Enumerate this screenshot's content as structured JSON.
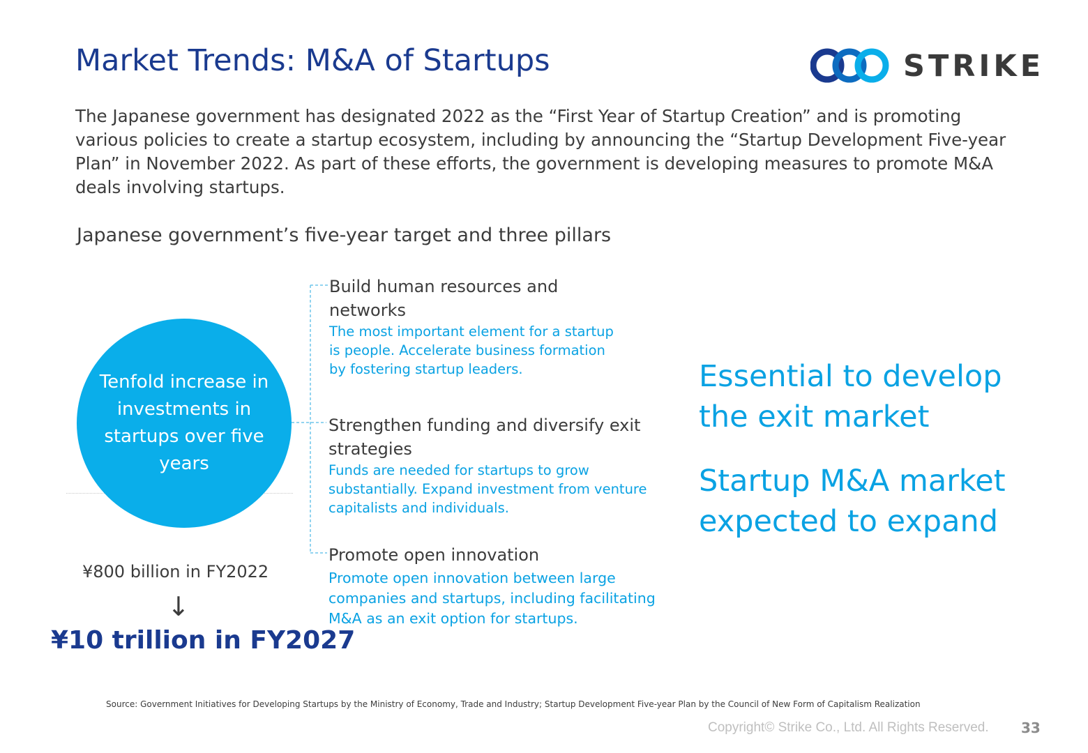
{
  "header": {
    "title": "Market Trends: M&A of Startups",
    "logo_text": "STRIKE"
  },
  "intro_text": "The Japanese government has designated 2022 as the “First Year of Startup Creation” and is promoting various policies to create a startup ecosystem, including by announcing the “Startup Development Five-year Plan” in November 2022. As part of these efforts, the government is developing measures to promote M&A deals involving startups.",
  "section_title": "Japanese government’s five-year target and three pillars",
  "target": {
    "circle_text": "Tenfold increase in\ninvestments in\nstartups over five\nyears",
    "from_value": "¥800 billion in FY2022",
    "arrow": "↓",
    "to_value": "¥10 trillion in FY2027"
  },
  "pillars": [
    {
      "title": "Build human resources and networks",
      "description": "The most important element for a startup is people. Accelerate business formation by fostering startup leaders."
    },
    {
      "title": "Strengthen funding and diversify exit strategies",
      "description": "Funds are needed for startups to grow substantially. Expand investment from venture capitalists and individuals."
    },
    {
      "title": "Promote open innovation",
      "description": "Promote open innovation between large companies and startups, including facilitating M&A as an exit option for startups."
    }
  ],
  "highlights": [
    "Essential to develop the exit market",
    "Startup M&A market expected to expand"
  ],
  "source": "Source: Government Initiatives for Developing Startups by the Ministry of Economy, Trade and Industry; Startup Development Five-year Plan by the Council of New Form of Capitalism Realization",
  "footer": {
    "copyright": "Copyright© Strike Co., Ltd. All Rights Reserved.",
    "page_number": "33"
  },
  "colors": {
    "title_blue": "#1a3a8f",
    "accent_cyan": "#0aaeea",
    "text_gray": "#3c3c3c"
  }
}
